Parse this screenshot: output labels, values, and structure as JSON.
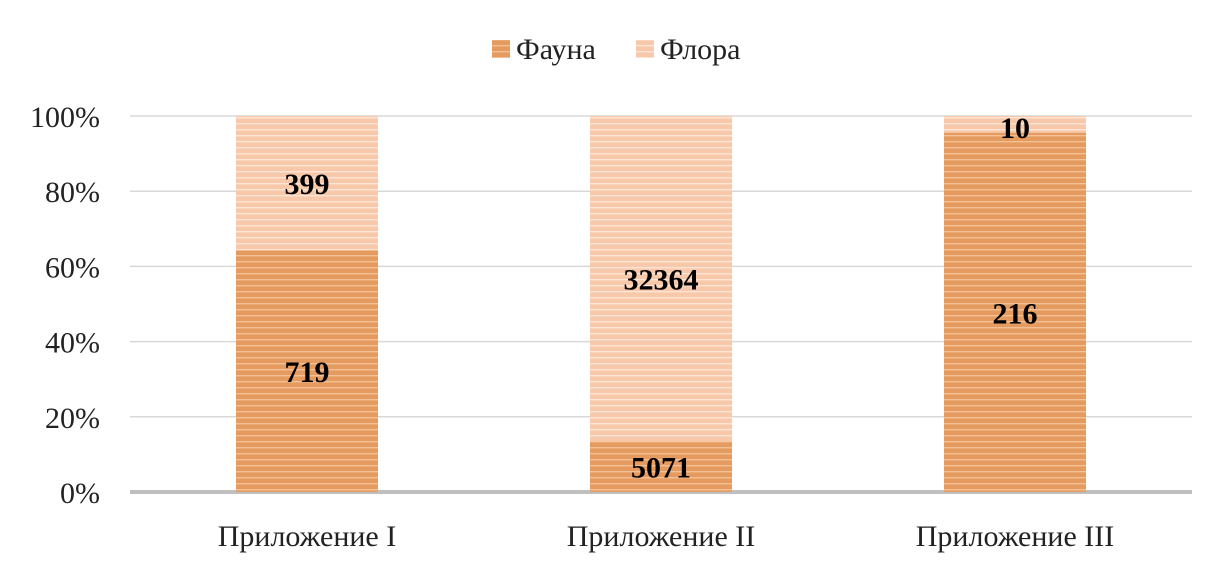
{
  "chart_data": {
    "type": "bar",
    "stacked": "percent",
    "categories": [
      "Приложение I",
      "Приложение II",
      "Приложение III"
    ],
    "series": [
      {
        "name": "Фауна",
        "values": [
          719,
          5071,
          216
        ],
        "color": "#e59b5f"
      },
      {
        "name": "Флора",
        "values": [
          399,
          32364,
          10
        ],
        "color": "#f7c8a9"
      }
    ],
    "y_ticks": [
      "0%",
      "20%",
      "40%",
      "60%",
      "80%",
      "100%"
    ],
    "ylim": [
      0,
      100
    ],
    "grid": true,
    "legend": "top-center"
  }
}
